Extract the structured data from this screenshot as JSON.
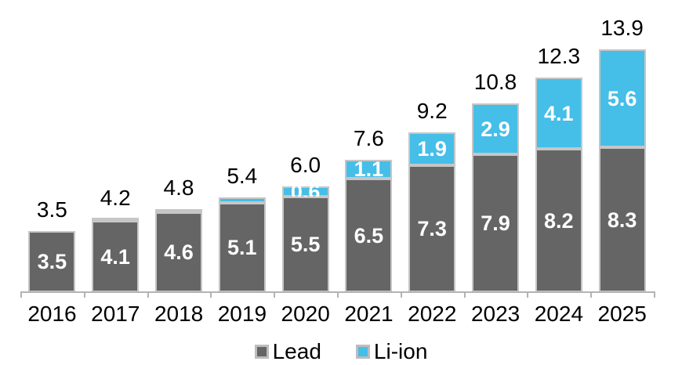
{
  "chart_data": {
    "type": "bar",
    "stacked": true,
    "title": "",
    "xlabel": "",
    "ylabel": "",
    "categories": [
      "2016",
      "2017",
      "2018",
      "2019",
      "2020",
      "2021",
      "2022",
      "2023",
      "2024",
      "2025"
    ],
    "series": [
      {
        "name": "Lead",
        "color": "#656565",
        "values": [
          3.5,
          4.1,
          4.6,
          5.1,
          5.5,
          6.5,
          7.3,
          7.9,
          8.2,
          8.3
        ],
        "labels": [
          "3.5",
          "4.1",
          "4.6",
          "5.1",
          "5.5",
          "6.5",
          "7.3",
          "7.9",
          "8.2",
          "8.3"
        ]
      },
      {
        "name": "Li-ion",
        "color": "#45BEE8",
        "values": [
          0.0,
          0.1,
          0.2,
          0.3,
          0.6,
          1.1,
          1.9,
          2.9,
          4.1,
          5.6
        ],
        "labels": [
          "",
          "",
          "",
          "",
          "0.6",
          "1.1",
          "1.9",
          "2.9",
          "4.1",
          "5.6"
        ]
      }
    ],
    "totals": [
      "3.5",
      "4.2",
      "4.8",
      "5.4",
      "6.0",
      "7.6",
      "9.2",
      "10.8",
      "12.3",
      "13.9"
    ],
    "ylim": [
      0,
      16
    ],
    "grid": false,
    "legend_position": "bottom",
    "colors": {
      "segment_border": "#C6C6C6",
      "axis": "#B3B3B3",
      "total_label": "#000000",
      "inside_label": "#FFFFFF"
    }
  },
  "legend": {
    "items": [
      {
        "label": "Lead",
        "color": "#656565"
      },
      {
        "label": "Li-ion",
        "color": "#45BEE8"
      }
    ]
  }
}
